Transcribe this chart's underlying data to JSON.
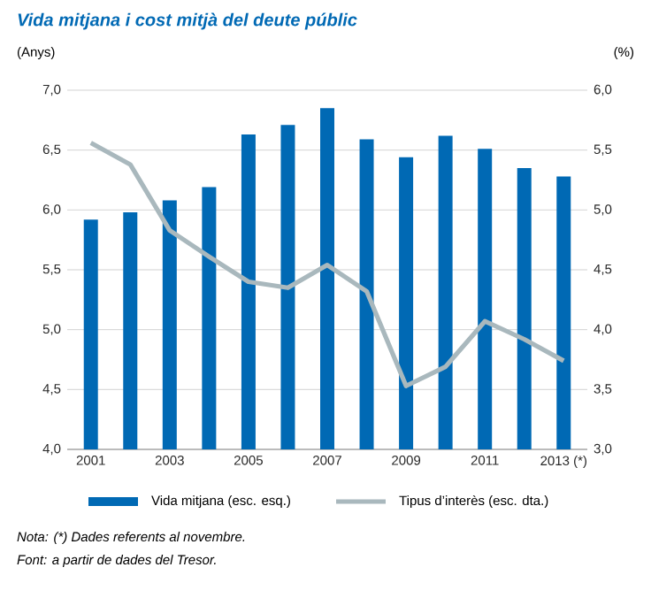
{
  "chart_data": {
    "type": "bar",
    "title": "Vida mitjana i cost mitjà del deute públic",
    "ylabel": "(Anys)",
    "y2label": "(%)",
    "categories": [
      "2001",
      null,
      "2003",
      null,
      "2005",
      null,
      "2007",
      null,
      "2009",
      null,
      "2011",
      null,
      "2013 (*)"
    ],
    "series": [
      {
        "name": "Vida mitjana (esc. esq.)",
        "color": "#0069b4",
        "values": [
          5.92,
          5.98,
          6.08,
          6.19,
          6.63,
          6.71,
          6.85,
          6.59,
          6.44,
          6.62,
          6.51,
          6.35,
          6.28
        ]
      },
      {
        "name": "Tipus d’interès (esc. dta.)",
        "type": "line",
        "axis": "y2",
        "color": "#a9b8bd",
        "values": [
          5.56,
          5.38,
          4.83,
          4.61,
          4.4,
          4.35,
          4.54,
          4.32,
          3.53,
          3.69,
          4.07,
          3.92,
          3.74
        ]
      }
    ],
    "ylim": [
      4.0,
      7.0
    ],
    "yticks": [
      {
        "value": 4.0,
        "label": "4,0"
      },
      {
        "value": 4.5,
        "label": "4,5"
      },
      {
        "value": 5.0,
        "label": "5,0"
      },
      {
        "value": 5.5,
        "label": "5,5"
      },
      {
        "value": 6.0,
        "label": "6,0"
      },
      {
        "value": 6.5,
        "label": "6,5"
      },
      {
        "value": 7.0,
        "label": "7,0"
      }
    ],
    "y2lim": [
      3.0,
      6.0
    ],
    "y2ticks": [
      {
        "value": 3.0,
        "label": "3,0"
      },
      {
        "value": 3.5,
        "label": "3,5"
      },
      {
        "value": 4.0,
        "label": "4,0"
      },
      {
        "value": 4.5,
        "label": "4,5"
      },
      {
        "value": 5.0,
        "label": "5,0"
      },
      {
        "value": 5.5,
        "label": "5,5"
      },
      {
        "value": 6.0,
        "label": "6,0"
      }
    ],
    "grid": "y",
    "legend": "bottom",
    "marker": "none",
    "line_style": "solid",
    "annotations": [
      "Nota: (*) Dades referents al novembre.",
      "Font: a partir de dades del Tresor."
    ]
  }
}
